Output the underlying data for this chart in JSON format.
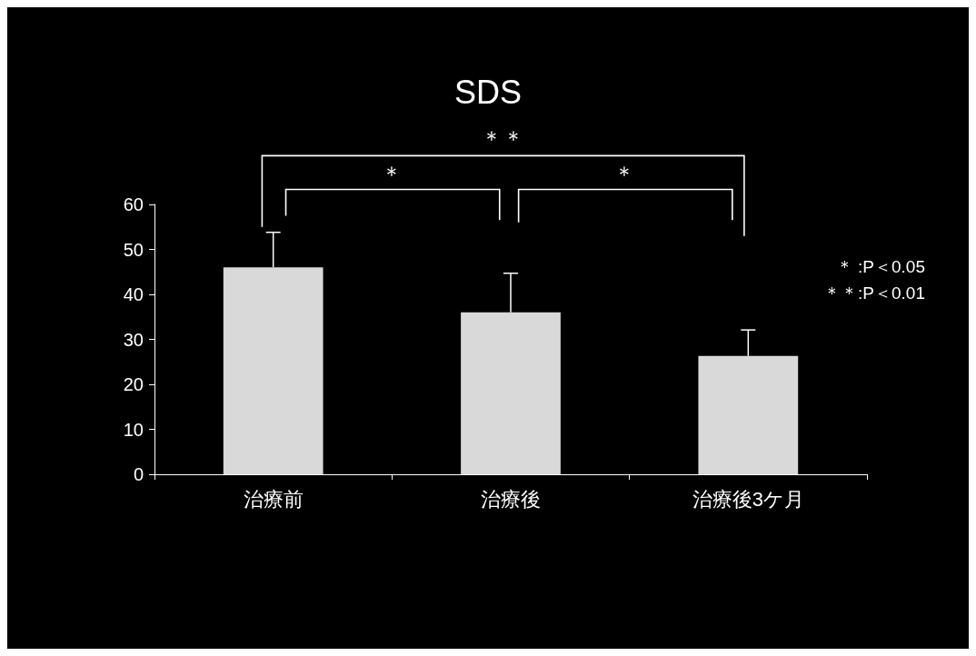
{
  "chart_data": {
    "type": "bar",
    "title": "SDS",
    "categories": [
      "治療前",
      "治療後",
      "治療後3ケ月"
    ],
    "values": [
      46.0,
      36.0,
      26.3
    ],
    "errors": [
      [
        46.0,
        53.8
      ],
      [
        36.0,
        44.7
      ],
      [
        26.3,
        32.1
      ]
    ],
    "color": "#d9d9d9",
    "ylim": [
      0,
      60
    ],
    "yticks": [
      0,
      10,
      20,
      30,
      40,
      50,
      60
    ],
    "grid": false,
    "annotations": [
      "＊＊",
      "＊",
      "＊",
      "＊ :P＜0.05",
      "＊＊:P＜0.01"
    ]
  }
}
